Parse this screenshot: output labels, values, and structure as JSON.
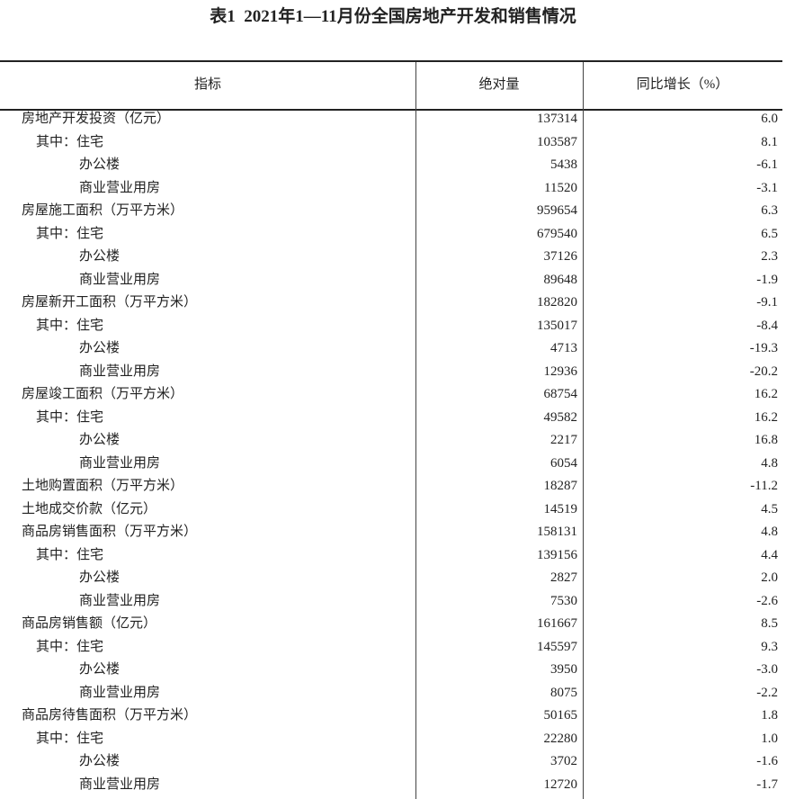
{
  "title": "表1  2021年1—11月份全国房地产开发和销售情况",
  "table": {
    "header": [
      "指标",
      "绝对量",
      "同比增长（%）"
    ],
    "rows": [
      [
        "房地产开发投资（亿元）",
        "137314",
        "6.0"
      ],
      [
        "其中：住宅",
        "103587",
        "8.1"
      ],
      [
        "办公楼",
        "5438",
        "-6.1"
      ],
      [
        "商业营业用房",
        "11520",
        "-3.1"
      ],
      [
        "房屋施工面积（万平方米）",
        "959654",
        "6.3"
      ],
      [
        "其中：住宅",
        "679540",
        "6.5"
      ],
      [
        "办公楼",
        "37126",
        "2.3"
      ],
      [
        "商业营业用房",
        "89648",
        "-1.9"
      ],
      [
        "房屋新开工面积（万平方米）",
        "182820",
        "-9.1"
      ],
      [
        "其中：住宅",
        "135017",
        "-8.4"
      ],
      [
        "办公楼",
        "4713",
        "-19.3"
      ],
      [
        "商业营业用房",
        "12936",
        "-20.2"
      ],
      [
        "房屋竣工面积（万平方米）",
        "68754",
        "16.2"
      ],
      [
        "其中：住宅",
        "49582",
        "16.2"
      ],
      [
        "办公楼",
        "2217",
        "16.8"
      ],
      [
        "商业营业用房",
        "6054",
        "4.8"
      ],
      [
        "土地购置面积（万平方米）",
        "18287",
        "-11.2"
      ],
      [
        "土地成交价款（亿元）",
        "14519",
        "4.5"
      ],
      [
        "商品房销售面积（万平方米）",
        "158131",
        "4.8"
      ],
      [
        "其中：住宅",
        "139156",
        "4.4"
      ],
      [
        "办公楼",
        "2827",
        "2.0"
      ],
      [
        "商业营业用房",
        "7530",
        "-2.6"
      ],
      [
        "商品房销售额（亿元）",
        "161667",
        "8.5"
      ],
      [
        "其中：住宅",
        "145597",
        "9.3"
      ],
      [
        "办公楼",
        "3950",
        "-3.0"
      ],
      [
        "商业营业用房",
        "8075",
        "-2.2"
      ],
      [
        "商品房待售面积（万平方米）",
        "50165",
        "1.8"
      ],
      [
        "其中：住宅",
        "22280",
        "1.0"
      ],
      [
        "办公楼",
        "3702",
        "-1.6"
      ],
      [
        "商业营业用房",
        "12720",
        "-1.7"
      ]
    ]
  }
}
